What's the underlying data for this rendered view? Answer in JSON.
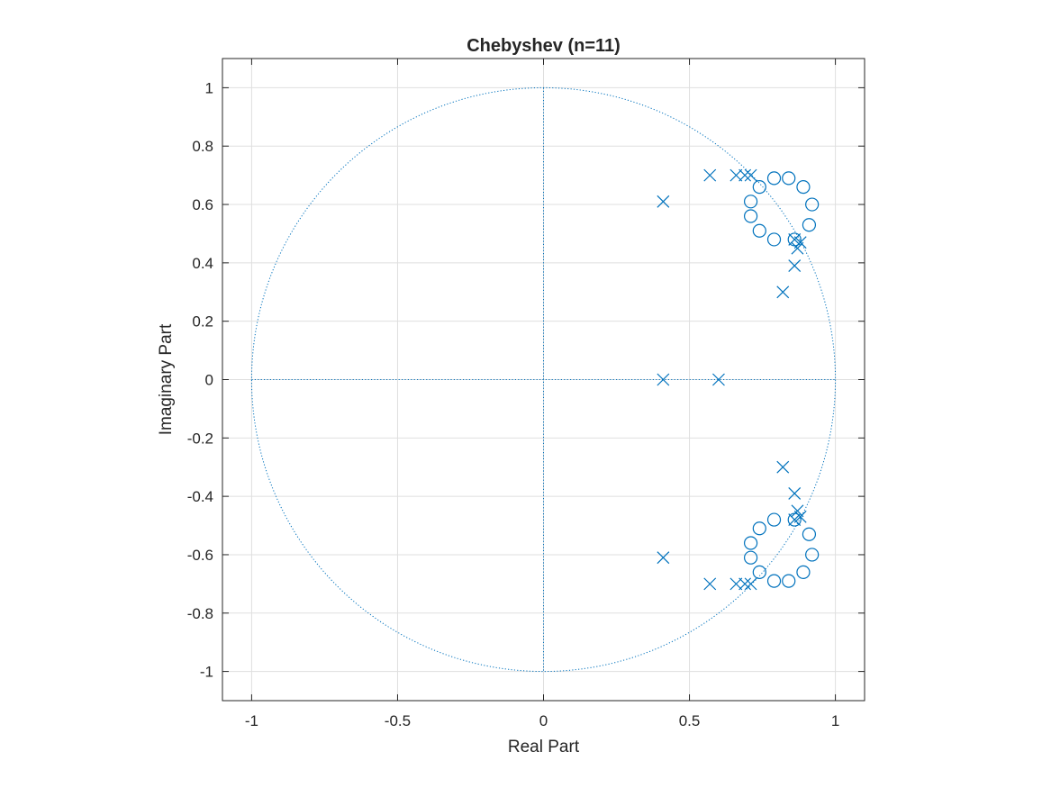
{
  "chart_data": {
    "type": "scatter",
    "title": "Chebyshev (n=11)",
    "xlabel": "Real Part",
    "ylabel": "Imaginary Part",
    "xlim": [
      -1.1,
      1.1
    ],
    "ylim": [
      -1.1,
      1.1
    ],
    "xticks": [
      -1,
      -0.5,
      0,
      0.5,
      1
    ],
    "xtick_labels": [
      "-1",
      "-0.5",
      "0",
      "0.5",
      "1"
    ],
    "yticks": [
      1,
      0.8,
      0.6,
      0.4,
      0.2,
      0,
      -0.2,
      -0.4,
      -0.6,
      -0.8,
      -1
    ],
    "ytick_labels": [
      "1",
      "0.8",
      "0.6",
      "0.4",
      "0.2",
      "0",
      "-0.2",
      "-0.4",
      "-0.6",
      "-0.8",
      "-1"
    ],
    "grid": true,
    "unit_circle": true,
    "marker_color": "#0072BD",
    "series": [
      {
        "marker": "o",
        "x": [
          0.74,
          0.79,
          0.84,
          0.89,
          0.92,
          0.91,
          0.86,
          0.79,
          0.74,
          0.71,
          0.71,
          0.74,
          0.79,
          0.84,
          0.89,
          0.92,
          0.91,
          0.86,
          0.79,
          0.74,
          0.71,
          0.71
        ],
        "y": [
          0.66,
          0.69,
          0.69,
          0.66,
          0.6,
          0.53,
          0.48,
          0.48,
          0.51,
          0.56,
          0.61,
          -0.66,
          -0.69,
          -0.69,
          -0.66,
          -0.6,
          -0.53,
          -0.48,
          -0.48,
          -0.51,
          -0.56,
          -0.61
        ]
      },
      {
        "marker": "x",
        "x": [
          0.41,
          0.57,
          0.66,
          0.69,
          0.71,
          0.82,
          0.86,
          0.86,
          0.87,
          0.88,
          0.41,
          0.57,
          0.66,
          0.69,
          0.71,
          0.82,
          0.86,
          0.86,
          0.87,
          0.88,
          0.41,
          0.6
        ],
        "y": [
          0.61,
          0.7,
          0.7,
          0.7,
          0.7,
          0.3,
          0.39,
          0.48,
          0.45,
          0.47,
          -0.61,
          -0.7,
          -0.7,
          -0.7,
          -0.7,
          -0.3,
          -0.39,
          -0.48,
          -0.45,
          -0.47,
          0.0,
          0.0
        ]
      }
    ]
  }
}
